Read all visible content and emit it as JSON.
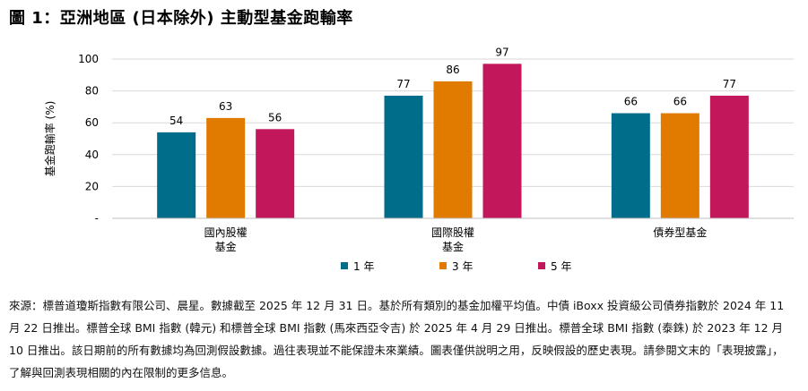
{
  "title": "圖 1：亞洲地區 (日本除外) 主動型基金跑輸率",
  "chart_data": {
    "type": "bar",
    "ylabel": "基金跑輸率 (%)",
    "ylim": [
      0,
      100
    ],
    "yticks": [
      {
        "value": 0,
        "label": "-"
      },
      {
        "value": 20,
        "label": "20"
      },
      {
        "value": 40,
        "label": "40"
      },
      {
        "value": 60,
        "label": "60"
      },
      {
        "value": 80,
        "label": "80"
      },
      {
        "value": 100,
        "label": "100"
      }
    ],
    "categories": [
      [
        "國內股權",
        "基金"
      ],
      [
        "國際股權",
        "基金"
      ],
      [
        "債券型基金"
      ]
    ],
    "series": [
      {
        "name": "1 年",
        "color": "#006e8a",
        "values": [
          54,
          77,
          66
        ]
      },
      {
        "name": "3 年",
        "color": "#e07b00",
        "values": [
          63,
          86,
          66
        ]
      },
      {
        "name": "5 年",
        "color": "#c2185b",
        "values": [
          56,
          97,
          77
        ]
      }
    ],
    "grid": true,
    "legend": "bottom"
  },
  "footnote": "來源：標普道瓊斯指數有限公司、晨星。數據截至 2025 年 12 月 31 日。基於所有類別的基金加權平均值。中債 iBoxx 投資級公司債券指數於 2024 年 11 月 22 日推出。標普全球 BMI 指數 (韓元) 和標普全球 BMI 指數 (馬來西亞令吉) 於 2025 年 4 月 29 日推出。標普全球 BMI 指數 (泰銖) 於 2023 年 12 月 10 日推出。該日期前的所有數據均為回測假設數據。過往表現並不能保證未來業績。圖表僅供說明之用，反映假設的歷史表現。請參閱文末的「表現披露」，了解與回測表現相關的內在限制的更多信息。"
}
